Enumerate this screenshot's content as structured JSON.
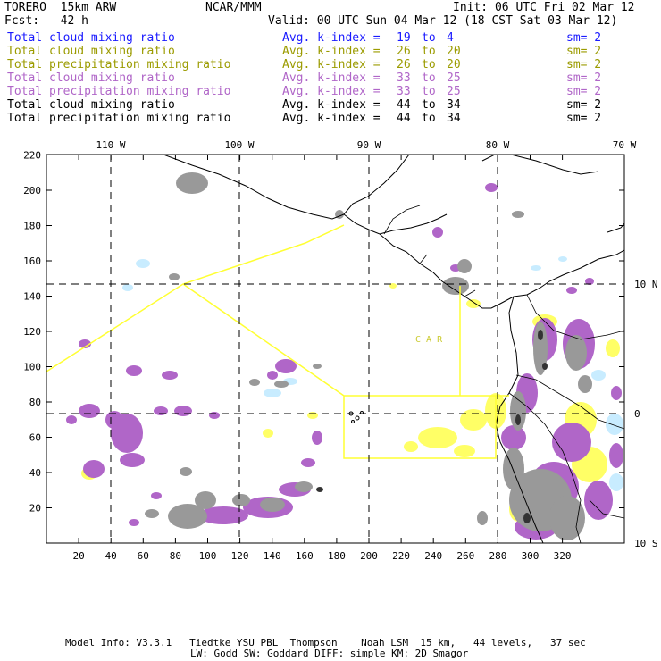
{
  "header": {
    "model": "TORERO  15km ARW",
    "center": "NCAR/MMM",
    "init": "Init: 06 UTC Fri 02 Mar 12",
    "fcst": "Fcst:   42 h",
    "valid": "Valid: 00 UTC Sun 04 Mar 12 (18 CST Sat 03 Mar 12)"
  },
  "legend": [
    {
      "label": "Total cloud mixing ratio",
      "avg": "Avg. k-index =",
      "from": "19",
      "to_word": "to",
      "to": "4",
      "sm": "sm= 2",
      "color": "#1a1aff"
    },
    {
      "label": "Total cloud mixing ratio",
      "avg": "Avg. k-index =",
      "from": "26",
      "to_word": "to",
      "to": "20",
      "sm": "sm= 2",
      "color": "#9b9b00"
    },
    {
      "label": "Total precipitation mixing ratio",
      "avg": "Avg. k-index =",
      "from": "26",
      "to_word": "to",
      "to": "20",
      "sm": "sm= 2",
      "color": "#9b9b00"
    },
    {
      "label": "Total cloud mixing ratio",
      "avg": "Avg. k-index =",
      "from": "33",
      "to_word": "to",
      "to": "25",
      "sm": "sm= 2",
      "color": "#b066c8"
    },
    {
      "label": "Total precipitation mixing ratio",
      "avg": "Avg. k-index =",
      "from": "33",
      "to_word": "to",
      "to": "25",
      "sm": "sm= 2",
      "color": "#b066c8"
    },
    {
      "label": "Total cloud mixing ratio",
      "avg": "Avg. k-index =",
      "from": "44",
      "to_word": "to",
      "to": "34",
      "sm": "sm= 2",
      "color": "#000000"
    },
    {
      "label": "Total precipitation mixing ratio",
      "avg": "Avg. k-index =",
      "from": "44",
      "to_word": "to",
      "to": "34",
      "sm": "sm= 2",
      "color": "#000000"
    }
  ],
  "axes": {
    "lon_labels": [
      "110 W",
      "100 W",
      "90 W",
      "80 W",
      "70 W"
    ],
    "lat_labels": [
      "10 N",
      "0",
      "10 S"
    ],
    "x_ticks": [
      "20",
      "40",
      "60",
      "80",
      "100",
      "120",
      "140",
      "160",
      "180",
      "200",
      "220",
      "240",
      "260",
      "280",
      "300",
      "320"
    ],
    "y_ticks": [
      "20",
      "40",
      "60",
      "80",
      "100",
      "120",
      "140",
      "160",
      "180",
      "200",
      "220"
    ]
  },
  "map_label": "C A R",
  "colors": {
    "light_cyan": "#c8ecff",
    "yellow": "#ffff66",
    "purple": "#b066c8",
    "gray": "#999999",
    "dark": "#333333",
    "box": "#ffff33"
  },
  "footer": {
    "line1": "Model Info: V3.3.1   Tiedtke YSU PBL  Thompson    Noah LSM  15 km,   44 levels,   37 sec",
    "line2": "LW: Godd SW: Goddard DIFF: simple KM: 2D Smagor"
  }
}
